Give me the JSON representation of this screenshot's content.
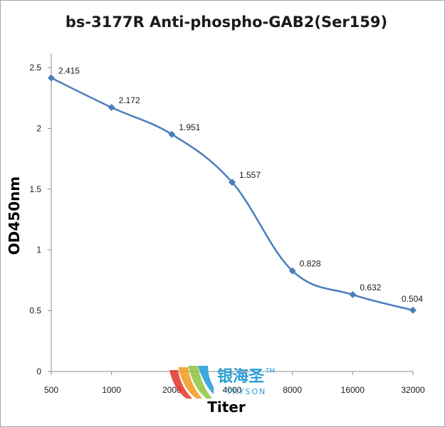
{
  "chart_data": {
    "type": "line",
    "title": "bs-3177R Anti-phospho-GAB2(Ser159)",
    "xlabel": "Titer",
    "ylabel": "OD450nm",
    "categories": [
      "500",
      "1000",
      "2000",
      "4000",
      "8000",
      "16000",
      "32000"
    ],
    "series": [
      {
        "values": [
          2.415,
          2.172,
          1.951,
          1.557,
          0.828,
          0.632,
          0.504
        ],
        "labels": [
          "2.415",
          "2.172",
          "1.951",
          "1.557",
          "0.828",
          "0.632",
          "0.504"
        ]
      }
    ],
    "yticks": [
      "0",
      "0.5",
      "1",
      "1.5",
      "2",
      "2.5"
    ],
    "ylim": [
      0,
      2.5
    ],
    "grid": false,
    "legend": "none",
    "line_color": "#4a7ebb"
  },
  "watermark": {
    "cn": "银海圣",
    "en": "TRYSON",
    "tm": "TM"
  }
}
